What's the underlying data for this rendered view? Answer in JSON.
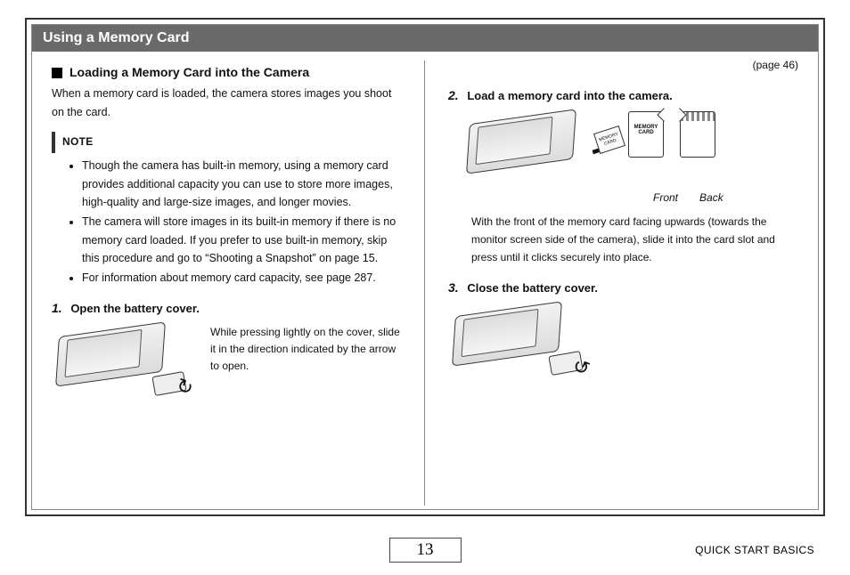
{
  "banner": "Using a Memory Card",
  "left": {
    "heading": "Loading a Memory Card into the Camera",
    "intro": "When a memory card is loaded, the camera stores images you shoot on the card.",
    "note_label": "NOTE",
    "notes": [
      "Though the camera has built-in memory, using a memory card provides additional capacity you can use to store more images, high-quality and large-size images, and longer movies.",
      "The camera will store images in its built-in memory if there is no memory card loaded. If you prefer to use built-in memory, skip this procedure and go to “Shooting a Snapshot” on page 15.",
      "For information about memory card capacity, see page 287."
    ],
    "step1_num": "1.",
    "step1_title": "Open the battery cover.",
    "step1_text": "While pressing lightly on the cover, slide it in the direction indicated by the arrow to open."
  },
  "right": {
    "page_ref": "(page 46)",
    "step2_num": "2.",
    "step2_title": "Load a memory card into the camera.",
    "card_text_front": "MEMORY CARD",
    "label_front": "Front",
    "label_back": "Back",
    "step2_text": "With the front of the memory card facing upwards (towards the monitor screen side of the camera), slide it into the card slot and press until it clicks securely into place.",
    "step3_num": "3.",
    "step3_title": "Close the battery cover."
  },
  "footer": {
    "page_number": "13",
    "section": "QUICK START BASICS"
  },
  "colors": {
    "banner_bg": "#6a6a6a",
    "banner_fg": "#ffffff",
    "border": "#333333"
  }
}
